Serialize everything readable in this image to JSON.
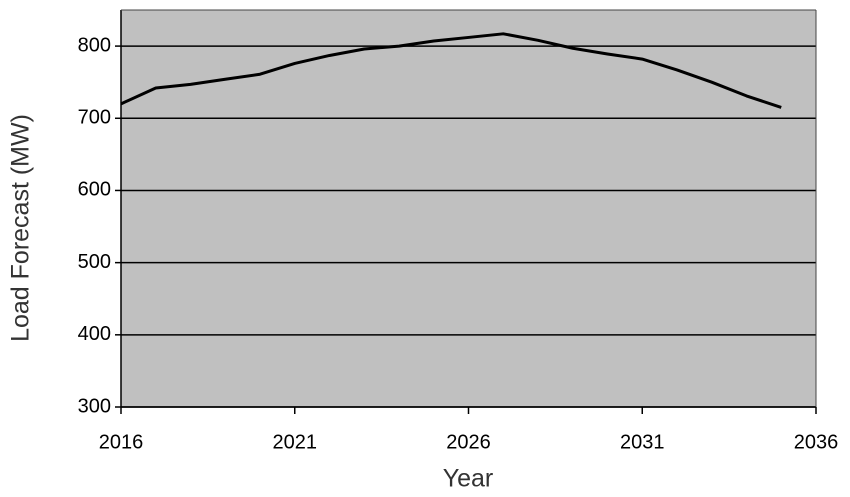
{
  "chart_data": {
    "type": "line",
    "x_label": "Year",
    "y_label": "Load Forecast (MW)",
    "x": [
      2016,
      2017,
      2018,
      2019,
      2020,
      2021,
      2022,
      2023,
      2024,
      2025,
      2026,
      2027,
      2028,
      2029,
      2030,
      2031,
      2032,
      2033,
      2034,
      2035
    ],
    "series": [
      {
        "color": "#000000",
        "values": [
          720,
          742,
          747,
          754,
          761,
          776,
          787,
          796,
          800,
          807,
          812,
          817,
          808,
          797,
          789,
          782,
          767,
          750,
          731,
          715
        ]
      }
    ],
    "xlim": [
      2016,
      2036
    ],
    "xticks": [
      2016,
      2021,
      2026,
      2031,
      2036
    ],
    "ylim": [
      300,
      850
    ],
    "yticks": [
      300,
      400,
      500,
      600,
      700,
      800
    ],
    "grid": true,
    "plot_background": "#c0c0c0"
  }
}
